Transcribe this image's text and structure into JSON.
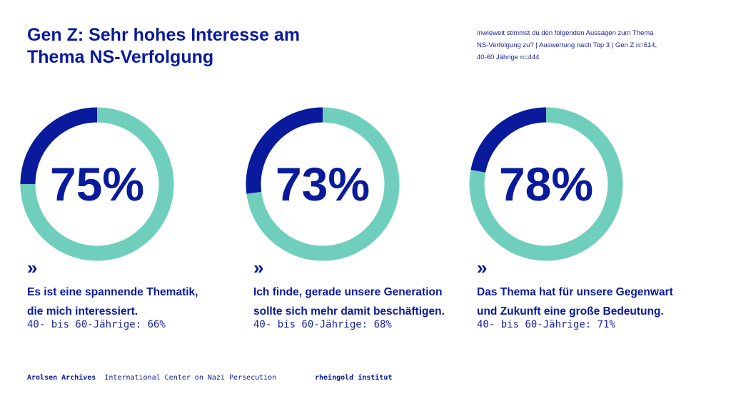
{
  "header": {
    "title_line1": "Gen Z: Sehr hohes Interesse am",
    "title_line2": "Thema NS-Verfolgung",
    "note_line1": "Inwieweit stimmst du den folgenden Aussagen zum Thema",
    "note_line2": "NS-Verfolgung zu? | Auswertung nach Top 3 | Gen Z n=614,",
    "note_line3": "40-60 Jährige n=444"
  },
  "colors": {
    "primary": "#0a1a9c",
    "accent": "#6fcfbc"
  },
  "chart_data": [
    {
      "type": "pie",
      "value": 75,
      "label": "75%",
      "statement_line1": "Es ist eine spannende Thematik,",
      "statement_line2": "die mich interessiert.",
      "comparison": "40- bis 60-Jährige: 66%"
    },
    {
      "type": "pie",
      "value": 73,
      "label": "73%",
      "statement_line1": "Ich finde, gerade unsere Generation",
      "statement_line2": "sollte sich mehr damit beschäftigen.",
      "comparison": "40- bis 60-Jährige: 68%"
    },
    {
      "type": "pie",
      "value": 78,
      "label": "78%",
      "statement_line1": "Das Thema hat für unsere Gegenwart",
      "statement_line2": "und Zukunft eine große Bedeutung.",
      "comparison": "40- bis 60-Jährige: 71%"
    }
  ],
  "footer": {
    "org": "Arolsen Archives",
    "org_sub": "International Center on Nazi Persecution",
    "partner": "rheingold institut"
  }
}
